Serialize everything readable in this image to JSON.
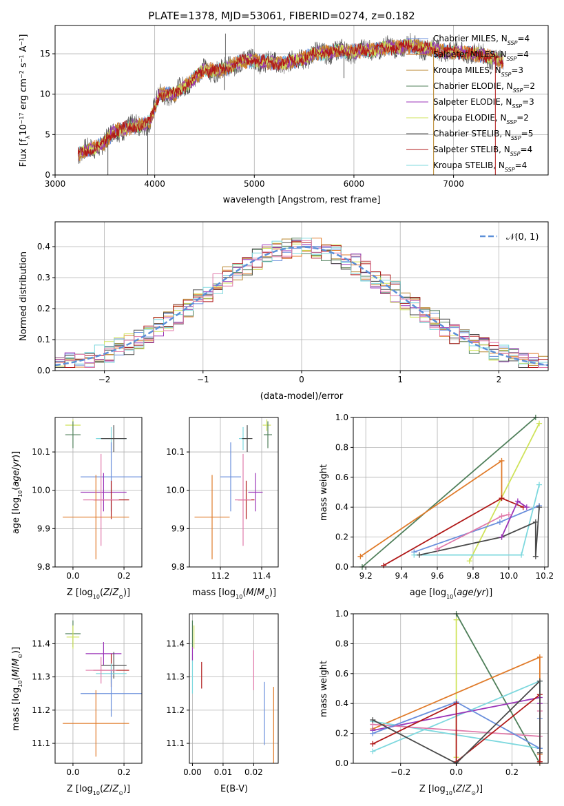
{
  "figure": {
    "title": "PLATE=1378, MJD=53061, FIBERID=0274, z=0.182"
  },
  "colors": {
    "chabrier_miles": "#6a8fdc",
    "salpeter_miles": "#e07b2a",
    "kroupa_miles": "#b8862e",
    "chabrier_elodie": "#4f7f5a",
    "salpeter_elodie": "#9b34b8",
    "kroupa_elodie": "#cfe35a",
    "chabrier_stelib": "#4a4a4a",
    "salpeter_stelib": "#b01818",
    "kroupa_stelib": "#7dd8de",
    "pink": "#e07aaa",
    "normal_curve": "#5b8fd8"
  },
  "chart_data": [
    {
      "id": "spectrum",
      "type": "line",
      "xlabel": "wavelength [Angstrom, rest frame]",
      "ylabel": "Flux [f",
      "xlim": [
        3000,
        7950
      ],
      "ylim": [
        0,
        18.5
      ],
      "xticks": [
        3000,
        4000,
        5000,
        6000,
        7000
      ],
      "yticks": [
        0,
        5,
        10,
        15
      ],
      "legend_location": "upper-right",
      "series": [
        {
          "name": "Chabrier MILES, N",
          "nssp": "=4",
          "color_key": "chabrier_miles"
        },
        {
          "name": "Salpeter MILES, N",
          "nssp": "=4",
          "color_key": "salpeter_miles"
        },
        {
          "name": "Kroupa MILES, N",
          "nssp": "=3",
          "color_key": "kroupa_miles"
        },
        {
          "name": "Chabrier ELODIE, N",
          "nssp": "=2",
          "color_key": "chabrier_elodie"
        },
        {
          "name": "Salpeter ELODIE, N",
          "nssp": "=3",
          "color_key": "salpeter_elodie"
        },
        {
          "name": "Kroupa ELODIE, N",
          "nssp": "=2",
          "color_key": "kroupa_elodie"
        },
        {
          "name": "Chabrier STELIB, N",
          "nssp": "=5",
          "color_key": "chabrier_stelib"
        },
        {
          "name": "Salpeter STELIB, N",
          "nssp": "=4",
          "color_key": "salpeter_stelib"
        },
        {
          "name": "Kroupa STELIB, N",
          "nssp": "=4",
          "color_key": "kroupa_stelib"
        }
      ],
      "continuum": [
        [
          3230,
          2.5
        ],
        [
          3500,
          4
        ],
        [
          3600,
          5.5
        ],
        [
          3800,
          6
        ],
        [
          3950,
          6.5
        ],
        [
          4050,
          10
        ],
        [
          4200,
          10
        ],
        [
          4350,
          11.5
        ],
        [
          4500,
          13
        ],
        [
          4700,
          13
        ],
        [
          4850,
          14
        ],
        [
          5000,
          14.2
        ],
        [
          5200,
          13.8
        ],
        [
          5400,
          14
        ],
        [
          5600,
          15
        ],
        [
          5800,
          15.3
        ],
        [
          6000,
          15.3
        ],
        [
          6200,
          15.5
        ],
        [
          6400,
          15.8
        ],
        [
          6600,
          16
        ],
        [
          6800,
          15.5
        ],
        [
          7000,
          15.2
        ],
        [
          7200,
          15
        ],
        [
          7400,
          14.5
        ],
        [
          7500,
          14
        ]
      ],
      "spikes_down": [
        [
          3530,
          0
        ],
        [
          3930,
          0
        ],
        [
          6800,
          0
        ],
        [
          7420,
          0
        ],
        [
          4700,
          10.5
        ],
        [
          5900,
          12
        ]
      ],
      "spikes_up": [
        [
          4710,
          17.5
        ]
      ]
    },
    {
      "id": "residuals",
      "type": "step",
      "xlabel": "(data-model)/error",
      "ylabel": "Normed distribution",
      "xlim": [
        -2.5,
        2.5
      ],
      "ylim": [
        0,
        0.48
      ],
      "xticks": [
        -2,
        -1,
        0,
        1,
        2
      ],
      "yticks": [
        0.0,
        0.1,
        0.2,
        0.3,
        0.4
      ],
      "legend_location": "upper-right",
      "curve_label": "𝒩(0, 1)",
      "bin_width": 0.1
    },
    {
      "id": "age_vs_Z",
      "type": "errorbar",
      "xlabel": "Z [log",
      "ylabel": "age  [log",
      "xlim": [
        -0.07,
        0.27
      ],
      "ylim": [
        9.8,
        10.19
      ],
      "xticks": [
        0.0,
        0.2
      ],
      "yticks": [
        9.8,
        9.9,
        10.0,
        10.1
      ],
      "points": [
        {
          "x": 0.0,
          "y": 10.17,
          "xerr": 0.03,
          "yerr": 0.015,
          "color_key": "kroupa_elodie"
        },
        {
          "x": 0.0,
          "y": 10.145,
          "xerr": 0.03,
          "yerr": 0.035,
          "color_key": "chabrier_elodie"
        },
        {
          "x": 0.15,
          "y": 10.135,
          "xerr": 0.06,
          "yerr": 0.03,
          "color_key": "kroupa_stelib"
        },
        {
          "x": 0.16,
          "y": 10.135,
          "xerr": 0.05,
          "yerr": 0.035,
          "color_key": "chabrier_stelib"
        },
        {
          "x": 0.15,
          "y": 10.035,
          "xerr": 0.12,
          "yerr": 0.09,
          "color_key": "chabrier_miles"
        },
        {
          "x": 0.12,
          "y": 9.995,
          "xerr": 0.09,
          "yerr": 0.05,
          "color_key": "salpeter_elodie"
        },
        {
          "x": 0.15,
          "y": 9.975,
          "xerr": 0.07,
          "yerr": 0.05,
          "color_key": "salpeter_stelib"
        },
        {
          "x": 0.11,
          "y": 9.975,
          "xerr": 0.07,
          "yerr": 0.12,
          "color_key": "pink"
        },
        {
          "x": 0.09,
          "y": 9.93,
          "xerr": 0.13,
          "yerr": 0.11,
          "color_key": "salpeter_miles"
        }
      ]
    },
    {
      "id": "age_vs_mass",
      "type": "errorbar",
      "xlabel": "mass [log",
      "xlim": [
        11.05,
        11.48
      ],
      "ylim": [
        9.8,
        10.19
      ],
      "xticks": [
        11.2,
        11.4
      ],
      "yticks": [
        9.8,
        9.9,
        10.0,
        10.1
      ],
      "points": [
        {
          "x": 11.425,
          "y": 10.17,
          "xerr": 0.02,
          "yerr": 0.015,
          "color_key": "kroupa_elodie"
        },
        {
          "x": 11.43,
          "y": 10.145,
          "xerr": 0.02,
          "yerr": 0.035,
          "color_key": "chabrier_elodie"
        },
        {
          "x": 11.31,
          "y": 10.135,
          "xerr": 0.02,
          "yerr": 0.03,
          "color_key": "kroupa_stelib"
        },
        {
          "x": 11.33,
          "y": 10.135,
          "xerr": 0.025,
          "yerr": 0.035,
          "color_key": "chabrier_stelib"
        },
        {
          "x": 11.25,
          "y": 10.035,
          "xerr": 0.05,
          "yerr": 0.09,
          "color_key": "chabrier_miles"
        },
        {
          "x": 11.37,
          "y": 9.995,
          "xerr": 0.035,
          "yerr": 0.05,
          "color_key": "salpeter_elodie"
        },
        {
          "x": 11.325,
          "y": 9.975,
          "xerr": 0.04,
          "yerr": 0.05,
          "color_key": "salpeter_stelib"
        },
        {
          "x": 11.31,
          "y": 9.975,
          "xerr": 0.04,
          "yerr": 0.12,
          "color_key": "pink"
        },
        {
          "x": 11.16,
          "y": 9.93,
          "xerr": 0.085,
          "yerr": 0.11,
          "color_key": "salpeter_miles"
        }
      ]
    },
    {
      "id": "massweight_vs_age",
      "type": "line",
      "xlabel": "age  [log",
      "ylabel": "mass weight",
      "xlim": [
        9.13,
        10.22
      ],
      "ylim": [
        0,
        1.0
      ],
      "xticks": [
        9.2,
        9.4,
        9.6,
        9.8,
        10.0,
        10.2
      ],
      "yticks": [
        0.0,
        0.2,
        0.4,
        0.6,
        0.8,
        1.0
      ],
      "series": [
        {
          "color_key": "chabrier_elodie",
          "x": [
            9.18,
            10.15
          ],
          "y": [
            0.0,
            1.0
          ]
        },
        {
          "color_key": "kroupa_elodie",
          "x": [
            9.78,
            10.17
          ],
          "y": [
            0.04,
            0.96
          ]
        },
        {
          "color_key": "salpeter_miles",
          "x": [
            9.17,
            9.96,
            9.96
          ],
          "y": [
            0.07,
            0.71,
            0.46
          ]
        },
        {
          "color_key": "salpeter_stelib",
          "x": [
            9.3,
            9.96,
            10.08
          ],
          "y": [
            0.01,
            0.46,
            0.4
          ]
        },
        {
          "color_key": "chabrier_miles",
          "x": [
            9.47,
            9.95,
            10.17
          ],
          "y": [
            0.1,
            0.3,
            0.41
          ]
        },
        {
          "color_key": "kroupa_stelib",
          "x": [
            9.47,
            10.07,
            10.17
          ],
          "y": [
            0.08,
            0.08,
            0.55
          ]
        },
        {
          "color_key": "chabrier_stelib",
          "x": [
            9.5,
            9.96,
            10.15,
            10.15,
            10.17
          ],
          "y": [
            0.08,
            0.2,
            0.3,
            0.07,
            0.4
          ]
        },
        {
          "color_key": "salpeter_elodie",
          "x": [
            9.96,
            10.05,
            10.1
          ],
          "y": [
            0.2,
            0.44,
            0.4
          ]
        },
        {
          "color_key": "pink",
          "x": [
            9.6,
            9.96,
            10.0
          ],
          "y": [
            0.12,
            0.34,
            0.35
          ]
        }
      ]
    },
    {
      "id": "mass_vs_Z",
      "type": "errorbar",
      "xlabel": "Z [log",
      "ylabel": "mass [log",
      "xlim": [
        -0.07,
        0.27
      ],
      "ylim": [
        11.04,
        11.49
      ],
      "xticks": [
        0.0,
        0.2
      ],
      "yticks": [
        11.1,
        11.2,
        11.3,
        11.4
      ],
      "points": [
        {
          "x": 0.0,
          "y": 11.43,
          "xerr": 0.03,
          "yerr": 0.04,
          "color_key": "chabrier_elodie"
        },
        {
          "x": 0.0,
          "y": 11.42,
          "xerr": 0.025,
          "yerr": 0.035,
          "color_key": "kroupa_elodie"
        },
        {
          "x": 0.12,
          "y": 11.37,
          "xerr": 0.07,
          "yerr": 0.035,
          "color_key": "salpeter_elodie"
        },
        {
          "x": 0.16,
          "y": 11.335,
          "xerr": 0.05,
          "yerr": 0.04,
          "color_key": "chabrier_stelib"
        },
        {
          "x": 0.15,
          "y": 11.32,
          "xerr": 0.07,
          "yerr": 0.05,
          "color_key": "salpeter_stelib"
        },
        {
          "x": 0.15,
          "y": 11.31,
          "xerr": 0.06,
          "yerr": 0.03,
          "color_key": "kroupa_stelib"
        },
        {
          "x": 0.15,
          "y": 11.25,
          "xerr": 0.12,
          "yerr": 0.07,
          "color_key": "chabrier_miles"
        },
        {
          "x": 0.11,
          "y": 11.32,
          "xerr": 0.06,
          "yerr": 0.04,
          "color_key": "pink"
        },
        {
          "x": 0.09,
          "y": 11.16,
          "xerr": 0.13,
          "yerr": 0.1,
          "color_key": "salpeter_miles"
        }
      ]
    },
    {
      "id": "mass_vs_ebv",
      "type": "errorbar",
      "xlabel": "E(B-V)",
      "xlim": [
        -0.001,
        0.028
      ],
      "ylim": [
        11.04,
        11.49
      ],
      "xticks": [
        0.0,
        0.01,
        0.02
      ],
      "yticks": [
        11.1,
        11.2,
        11.3,
        11.4
      ],
      "points": [
        {
          "x": 0.0,
          "y": 11.43,
          "xerr": 0,
          "yerr": 0.04,
          "color_key": "chabrier_elodie"
        },
        {
          "x": 0.0005,
          "y": 11.42,
          "xerr": 0,
          "yerr": 0.035,
          "color_key": "kroupa_elodie"
        },
        {
          "x": 0.0,
          "y": 11.31,
          "xerr": 0,
          "yerr": 0.06,
          "color_key": "kroupa_stelib"
        },
        {
          "x": 0.0,
          "y": 11.37,
          "xerr": 0,
          "yerr": 0.02,
          "color_key": "salpeter_elodie"
        },
        {
          "x": 0.003,
          "y": 11.305,
          "xerr": 0,
          "yerr": 0.04,
          "color_key": "salpeter_stelib"
        },
        {
          "x": 0.02,
          "y": 11.32,
          "xerr": 0,
          "yerr": 0.06,
          "color_key": "pink"
        },
        {
          "x": 0.0235,
          "y": 11.19,
          "xerr": 0,
          "yerr": 0.095,
          "color_key": "chabrier_miles"
        },
        {
          "x": 0.0265,
          "y": 11.155,
          "xerr": 0,
          "yerr": 0.115,
          "color_key": "salpeter_miles"
        }
      ]
    },
    {
      "id": "massweight_vs_Z",
      "type": "line",
      "xlabel": "Z [log",
      "ylabel": "mass weight",
      "xlim": [
        -0.37,
        0.33
      ],
      "ylim": [
        0,
        1.0
      ],
      "xticks": [
        -0.2,
        0.0,
        0.2
      ],
      "yticks": [
        0.0,
        0.2,
        0.4,
        0.6,
        0.8,
        1.0
      ],
      "series": [
        {
          "color_key": "chabrier_elodie",
          "x": [
            0.0,
            0.3
          ],
          "y": [
            1.0,
            0.0
          ]
        },
        {
          "color_key": "kroupa_elodie",
          "x": [
            0.0,
            0.0
          ],
          "y": [
            0.96,
            0.04
          ]
        },
        {
          "color_key": "salpeter_miles",
          "x": [
            -0.3,
            0.3,
            0.3
          ],
          "y": [
            0.23,
            0.71,
            0.06
          ]
        },
        {
          "color_key": "kroupa_stelib",
          "x": [
            -0.3,
            0.3,
            0.3,
            -0.3
          ],
          "y": [
            0.08,
            0.55,
            0.1,
            0.28
          ]
        },
        {
          "color_key": "salpeter_elodie",
          "x": [
            -0.3,
            0.3,
            0.3
          ],
          "y": [
            0.22,
            0.44,
            0.4
          ]
        },
        {
          "color_key": "pink",
          "x": [
            -0.3,
            0.3,
            0.3
          ],
          "y": [
            0.26,
            0.18,
            0.35
          ]
        },
        {
          "color_key": "chabrier_miles",
          "x": [
            -0.3,
            0.0,
            0.3,
            0.3
          ],
          "y": [
            0.2,
            0.41,
            0.1,
            0.3
          ]
        },
        {
          "color_key": "salpeter_stelib",
          "x": [
            -0.3,
            0.0,
            0.0,
            0.3,
            0.3
          ],
          "y": [
            0.13,
            0.4,
            0.01,
            0.46,
            0.01
          ]
        },
        {
          "color_key": "chabrier_stelib",
          "x": [
            -0.3,
            0.0,
            0.3,
            0.3
          ],
          "y": [
            0.29,
            0.0,
            0.55,
            0.07
          ]
        }
      ]
    }
  ]
}
